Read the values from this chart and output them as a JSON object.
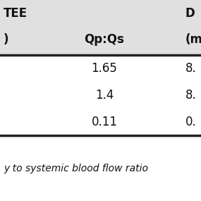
{
  "header_row1": [
    "TEE",
    "",
    "D"
  ],
  "header_row2": [
    ")",
    "Qp:Qs",
    "(m"
  ],
  "data_rows": [
    [
      "",
      "1.65",
      "8."
    ],
    [
      "",
      "1.4",
      "8."
    ],
    [
      "",
      "0.11",
      "0."
    ]
  ],
  "footer_text": "y to systemic blood flow ratio",
  "header_bg": "#e0e0e0",
  "body_bg": "#ffffff",
  "border_color": "#222222",
  "text_color": "#111111",
  "header_fontsize": 12,
  "data_fontsize": 12,
  "footer_fontsize": 10
}
